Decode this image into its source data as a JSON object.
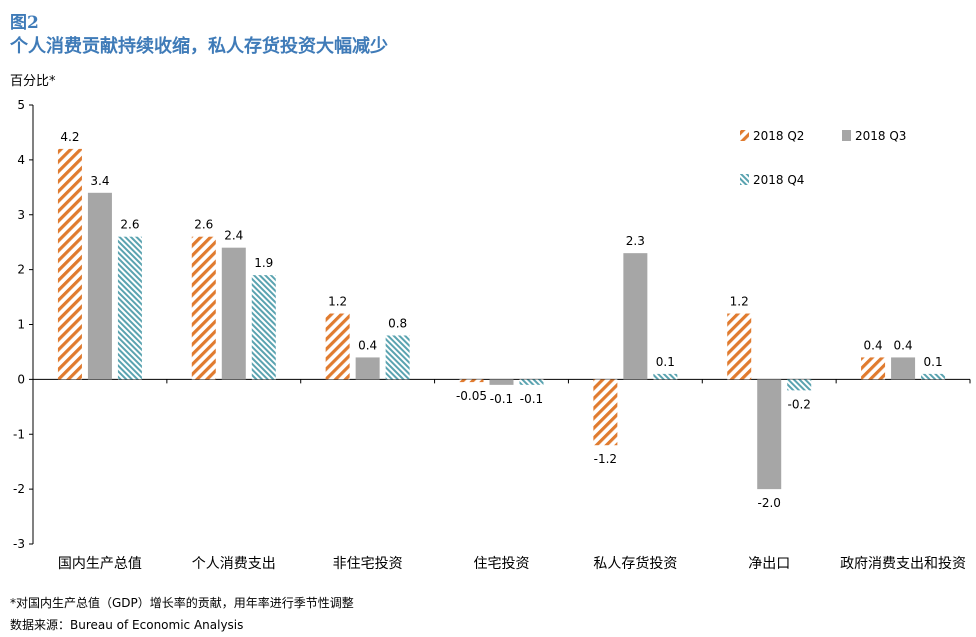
{
  "figure_label": "图2",
  "title": "个人消费贡献持续收缩，私人存货投资大幅减少",
  "unit_label": "百分比*",
  "footnote": "*对国内生产总值（GDP）增长率的贡献，用年率进行季节性调整",
  "source": "数据来源：Bureau of Economic Analysis",
  "colors": {
    "q2": "#e07b2f",
    "q3": "#a6a6a6",
    "q4": "#5aa3b0"
  },
  "chart_data": {
    "type": "bar",
    "categories": [
      "国内生产总值",
      "个人消费支出",
      "非住宅投资",
      "住宅投资",
      "私人存货投资",
      "净出口",
      "政府消费支出和投资"
    ],
    "series": [
      {
        "name": "2018 Q2",
        "values": [
          4.2,
          2.6,
          1.2,
          -0.05,
          -1.2,
          1.2,
          0.4
        ],
        "labels": [
          "4.2",
          "2.6",
          "1.2",
          "-0.05",
          "-1.2",
          "1.2",
          "0.4"
        ]
      },
      {
        "name": "2018 Q3",
        "values": [
          3.4,
          2.4,
          0.4,
          -0.1,
          2.3,
          -2.0,
          0.4
        ],
        "labels": [
          "3.4",
          "2.4",
          "0.4",
          "-0.1",
          "2.3",
          "-2.0",
          "0.4"
        ]
      },
      {
        "name": "2018 Q4",
        "values": [
          2.6,
          1.9,
          0.8,
          -0.1,
          0.1,
          -0.2,
          0.1
        ],
        "labels": [
          "2.6",
          "1.9",
          "0.8",
          "-0.1",
          "0.1",
          "-0.2",
          "0.1"
        ]
      }
    ],
    "ylim": [
      -3,
      5
    ],
    "yticks": [
      "5",
      "4",
      "3",
      "2",
      "1",
      "0",
      "-1",
      "-2",
      "-3"
    ],
    "ylabel": "百分比*",
    "xlabel": "",
    "legend_position": "top-right",
    "grid": false
  }
}
